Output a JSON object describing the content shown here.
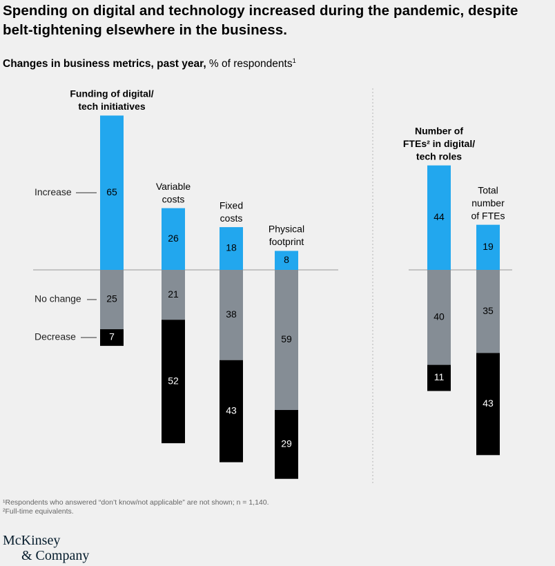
{
  "title": "Spending on digital and technology increased during the pandemic, despite belt-tightening elsewhere in the business.",
  "subtitle": {
    "bold": "Changes in business metrics, past year,",
    "rest": " % of respondents",
    "footnote_mark": "1"
  },
  "chart_data": {
    "type": "bar",
    "stacked": true,
    "orientation": "diverging",
    "row_labels": [
      "Increase",
      "No change",
      "Decrease"
    ],
    "series_colors": {
      "Increase": "#22a7ee",
      "No change": "#858d95",
      "Decrease": "#000000"
    },
    "unit": "% of respondents",
    "groups": [
      {
        "bars": [
          {
            "label_lines": [
              "Funding of digital/",
              "tech initiatives"
            ],
            "bold": true,
            "increase": 65,
            "no_change": 25,
            "decrease": 7
          },
          {
            "label_lines": [
              "Variable",
              "costs"
            ],
            "bold": false,
            "increase": 26,
            "no_change": 21,
            "decrease": 52
          },
          {
            "label_lines": [
              "Fixed",
              "costs"
            ],
            "bold": false,
            "increase": 18,
            "no_change": 38,
            "decrease": 43
          },
          {
            "label_lines": [
              "Physical",
              "footprint"
            ],
            "bold": false,
            "increase": 8,
            "no_change": 59,
            "decrease": 29
          }
        ]
      },
      {
        "bars": [
          {
            "label_lines": [
              "Number of",
              "FTEs² in digital/",
              "tech roles"
            ],
            "bold": true,
            "increase": 44,
            "no_change": 40,
            "decrease": 11
          },
          {
            "label_lines": [
              "Total",
              "number",
              "of FTEs"
            ],
            "bold": false,
            "increase": 19,
            "no_change": 35,
            "decrease": 43
          }
        ]
      }
    ]
  },
  "footnotes": [
    "¹Respondents who answered “don’t know/not applicable” are not shown; n = 1,140.",
    "²Full-time equivalents."
  ],
  "logo": {
    "line1": "McKinsey",
    "line2": "& Company"
  }
}
